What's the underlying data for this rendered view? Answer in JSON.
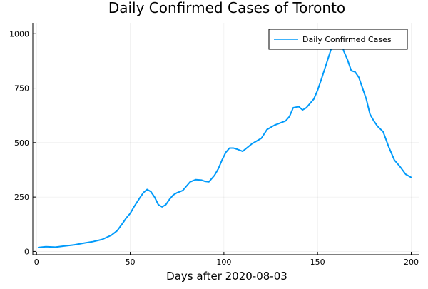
{
  "chart_data": {
    "type": "line",
    "title": "Daily Confirmed Cases of Toronto",
    "xlabel": "Days after 2020-08-03",
    "ylabel": "",
    "xlim": [
      -2,
      204
    ],
    "ylim": [
      -15,
      1050
    ],
    "xticks": [
      0,
      50,
      100,
      150,
      200
    ],
    "yticks": [
      0,
      250,
      500,
      750,
      1000
    ],
    "grid": true,
    "legend_position": "top-right",
    "series": [
      {
        "name": "Daily Confirmed Cases",
        "color": "#009AFA",
        "x": [
          1,
          5,
          10,
          15,
          20,
          25,
          30,
          35,
          40,
          43,
          46,
          48,
          50,
          52,
          55,
          57,
          59,
          61,
          63,
          65,
          67,
          69,
          71,
          73,
          75,
          78,
          80,
          82,
          85,
          88,
          90,
          92,
          95,
          97,
          99,
          101,
          103,
          105,
          107,
          110,
          115,
          120,
          123,
          127,
          130,
          133,
          135,
          137,
          140,
          142,
          144,
          146,
          148,
          150,
          152,
          155,
          158,
          160,
          162,
          164,
          166,
          168,
          170,
          172,
          174,
          176,
          178,
          180,
          182,
          185,
          188,
          191,
          194,
          197,
          200
        ],
        "y": [
          18,
          22,
          20,
          25,
          30,
          38,
          45,
          55,
          75,
          95,
          130,
          155,
          175,
          205,
          245,
          270,
          285,
          275,
          250,
          215,
          205,
          215,
          240,
          260,
          270,
          280,
          300,
          320,
          330,
          328,
          322,
          320,
          350,
          380,
          420,
          455,
          475,
          475,
          470,
          460,
          495,
          520,
          560,
          580,
          590,
          600,
          620,
          660,
          665,
          650,
          660,
          680,
          700,
          740,
          790,
          870,
          950,
          1020,
          980,
          920,
          880,
          830,
          825,
          800,
          750,
          700,
          630,
          600,
          575,
          550,
          480,
          420,
          390,
          355,
          340
        ]
      }
    ]
  }
}
